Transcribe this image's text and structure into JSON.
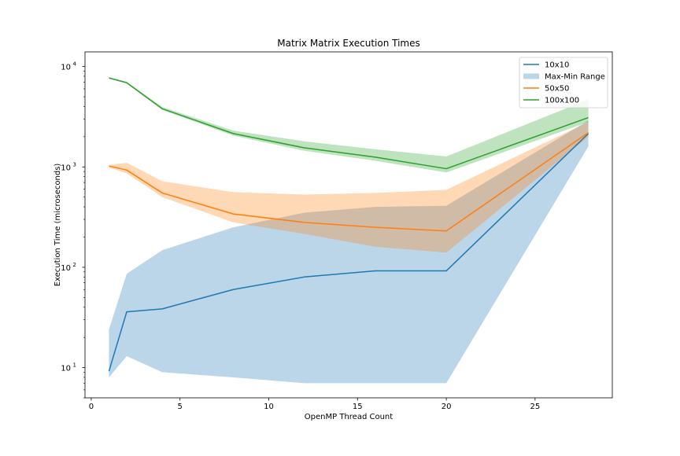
{
  "chart_data": {
    "type": "line",
    "title": "Matrix Matrix Execution Times",
    "xlabel": "OpenMP Thread Count",
    "ylabel": "Execution Time (microseconds)",
    "xlim": [
      -0.35,
      29.35
    ],
    "ylim": [
      5,
      14000
    ],
    "yscale": "log",
    "x_ticks": [
      0,
      5,
      10,
      15,
      20,
      25
    ],
    "y_ticks": [
      {
        "value": 10,
        "base": "10",
        "exp": "1"
      },
      {
        "value": 100,
        "base": "10",
        "exp": "2"
      },
      {
        "value": 1000,
        "base": "10",
        "exp": "3"
      },
      {
        "value": 10000,
        "base": "10",
        "exp": "4"
      }
    ],
    "grid": false,
    "legend_position": "upper right",
    "legend": [
      {
        "label": "10x10",
        "kind": "line",
        "color": "#1f77b4"
      },
      {
        "label": "Max-Min Range",
        "kind": "patch",
        "color": "#1f77b4"
      },
      {
        "label": "50x50",
        "kind": "line",
        "color": "#ff7f0e"
      },
      {
        "label": "100x100",
        "kind": "line",
        "color": "#2ca02c"
      }
    ],
    "series": [
      {
        "name": "10x10",
        "color": "#1f77b4",
        "x": [
          1,
          2,
          4,
          8,
          12,
          16,
          20,
          28
        ],
        "y": [
          9.2,
          36,
          38.5,
          60,
          80,
          92,
          92,
          2150
        ],
        "min": [
          8,
          13,
          9,
          8,
          7,
          7,
          7,
          1600
        ],
        "max": [
          24,
          86,
          148,
          250,
          350,
          400,
          410,
          2900
        ]
      },
      {
        "name": "50x50",
        "color": "#ff7f0e",
        "x": [
          1,
          2,
          4,
          8,
          12,
          16,
          20,
          28
        ],
        "y": [
          1020,
          930,
          550,
          340,
          280,
          250,
          230,
          2200
        ],
        "min": [
          990,
          860,
          500,
          280,
          215,
          160,
          140,
          2000
        ],
        "max": [
          1050,
          1100,
          720,
          560,
          530,
          550,
          590,
          2800
        ]
      },
      {
        "name": "100x100",
        "color": "#2ca02c",
        "x": [
          1,
          2,
          4,
          8,
          12,
          16,
          20,
          28
        ],
        "y": [
          7700,
          6900,
          3800,
          2150,
          1550,
          1250,
          960,
          3100
        ],
        "min": [
          7600,
          6800,
          3700,
          2050,
          1450,
          1150,
          880,
          2800
        ],
        "max": [
          7800,
          7050,
          3950,
          2300,
          1800,
          1500,
          1270,
          4700
        ]
      }
    ]
  }
}
